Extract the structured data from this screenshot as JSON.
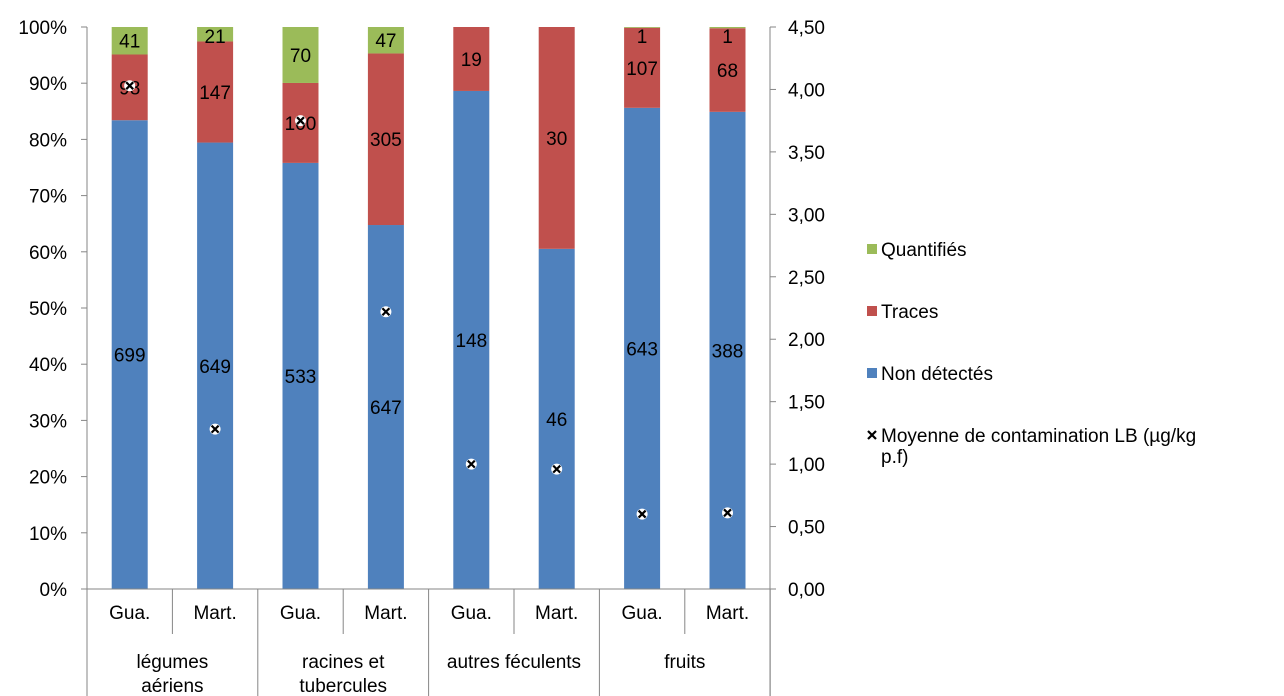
{
  "chart_data": {
    "type": "bar",
    "stacked": "percent",
    "groups": [
      {
        "label": "légumes aériens",
        "lines": [
          "légumes",
          "aériens"
        ]
      },
      {
        "label": "racines et tubercules",
        "lines": [
          "racines et",
          "tubercules"
        ]
      },
      {
        "label": "autres féculents",
        "lines": [
          "autres féculents"
        ]
      },
      {
        "label": "fruits",
        "lines": [
          "fruits"
        ]
      }
    ],
    "categories": [
      "Gua.",
      "Mart.",
      "Gua.",
      "Mart.",
      "Gua.",
      "Mart.",
      "Gua.",
      "Mart."
    ],
    "series": [
      {
        "name": "Non détectés",
        "color": "#4f81bd",
        "values": [
          699,
          649,
          533,
          647,
          148,
          46,
          643,
          388
        ]
      },
      {
        "name": "Traces",
        "color": "#c0504d",
        "values": [
          98,
          147,
          100,
          305,
          19,
          30,
          107,
          68
        ]
      },
      {
        "name": "Quantifiés",
        "color": "#9bbb59",
        "values": [
          41,
          21,
          70,
          47,
          0,
          0,
          1,
          1
        ]
      }
    ],
    "secondary_series": {
      "name": "Moyenne de contamination LB (µg/kg p.f)",
      "type": "scatter",
      "marker": "x",
      "values": [
        4.03,
        1.28,
        3.75,
        2.22,
        1.0,
        0.96,
        0.6,
        0.61
      ]
    },
    "y_left": {
      "ylim": [
        0,
        100
      ],
      "ticks": [
        "0%",
        "10%",
        "20%",
        "30%",
        "40%",
        "50%",
        "60%",
        "70%",
        "80%",
        "90%",
        "100%"
      ]
    },
    "y_right": {
      "ylim": [
        0,
        4.5
      ],
      "ticks": [
        "0,00",
        "0,50",
        "1,00",
        "1,50",
        "2,00",
        "2,50",
        "3,00",
        "3,50",
        "4,00",
        "4,50"
      ]
    },
    "legend": {
      "position": "right",
      "entries": [
        {
          "label": "Quantifiés",
          "color": "#9bbb59",
          "marker": "square"
        },
        {
          "label": "Traces",
          "color": "#c0504d",
          "marker": "square"
        },
        {
          "label": "Non détectés",
          "color": "#4f81bd",
          "marker": "square"
        },
        {
          "label": "Moyenne de contamination LB (µg/kg",
          "label_line2": "p.f)",
          "color": "#000000",
          "marker": "x"
        }
      ]
    },
    "grid": false
  }
}
